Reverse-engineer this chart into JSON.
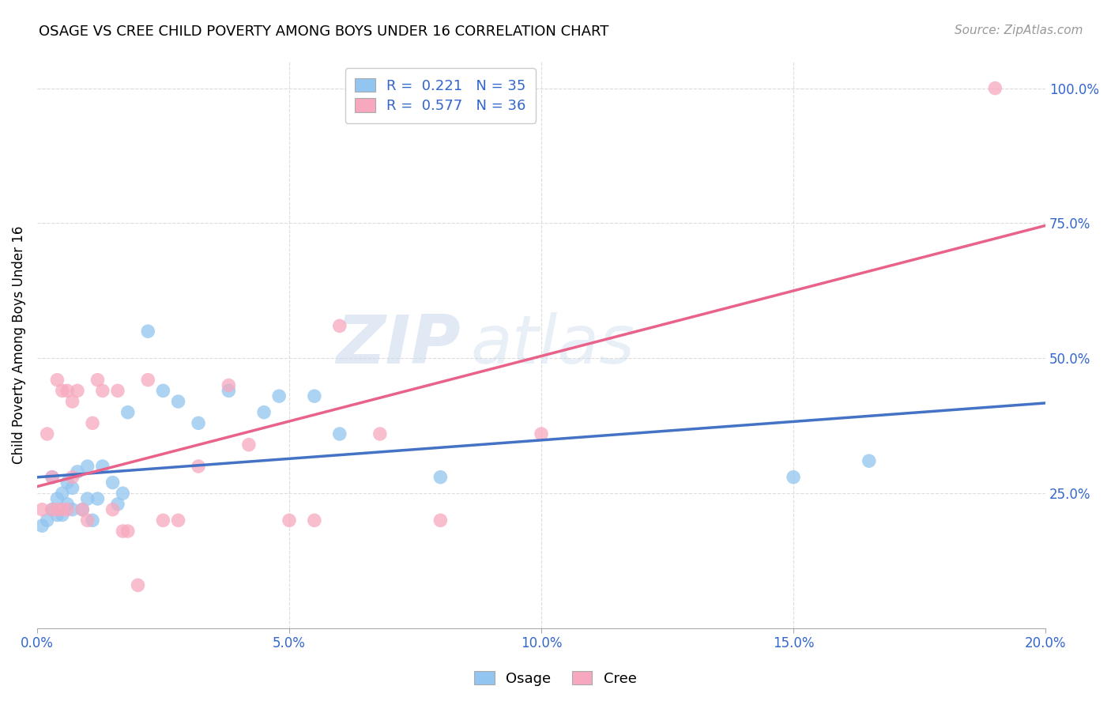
{
  "title": "OSAGE VS CREE CHILD POVERTY AMONG BOYS UNDER 16 CORRELATION CHART",
  "source": "Source: ZipAtlas.com",
  "ylabel": "Child Poverty Among Boys Under 16",
  "xlim": [
    0.0,
    0.2
  ],
  "ylim": [
    0.0,
    1.05
  ],
  "xtick_labels": [
    "0.0%",
    "5.0%",
    "10.0%",
    "15.0%",
    "20.0%"
  ],
  "xtick_vals": [
    0.0,
    0.05,
    0.1,
    0.15,
    0.2
  ],
  "ytick_labels_right": [
    "25.0%",
    "50.0%",
    "75.0%",
    "100.0%"
  ],
  "ytick_vals_right": [
    0.25,
    0.5,
    0.75,
    1.0
  ],
  "osage_color": "#92C5F0",
  "cree_color": "#F7A8BE",
  "osage_line_color": "#4472C4",
  "cree_line_color": "#E8628A",
  "legend_R_osage": "0.221",
  "legend_N_osage": "35",
  "legend_R_cree": "0.577",
  "legend_N_cree": "36",
  "watermark_zip": "ZIP",
  "watermark_atlas": "atlas",
  "background_color": "#FFFFFF",
  "grid_color": "#DDDDDD",
  "osage_x": [
    0.001,
    0.002,
    0.003,
    0.003,
    0.004,
    0.004,
    0.005,
    0.005,
    0.006,
    0.006,
    0.007,
    0.007,
    0.008,
    0.009,
    0.01,
    0.01,
    0.011,
    0.012,
    0.013,
    0.015,
    0.016,
    0.017,
    0.018,
    0.022,
    0.025,
    0.028,
    0.032,
    0.038,
    0.045,
    0.048,
    0.055,
    0.06,
    0.08,
    0.15,
    0.165
  ],
  "osage_y": [
    0.19,
    0.2,
    0.22,
    0.28,
    0.21,
    0.24,
    0.21,
    0.25,
    0.23,
    0.27,
    0.22,
    0.26,
    0.29,
    0.22,
    0.24,
    0.3,
    0.2,
    0.24,
    0.3,
    0.27,
    0.23,
    0.25,
    0.4,
    0.55,
    0.44,
    0.42,
    0.38,
    0.44,
    0.4,
    0.43,
    0.43,
    0.36,
    0.28,
    0.28,
    0.31
  ],
  "cree_x": [
    0.001,
    0.002,
    0.003,
    0.003,
    0.004,
    0.004,
    0.005,
    0.005,
    0.006,
    0.006,
    0.007,
    0.007,
    0.008,
    0.009,
    0.01,
    0.011,
    0.012,
    0.013,
    0.015,
    0.016,
    0.017,
    0.018,
    0.02,
    0.022,
    0.025,
    0.028,
    0.032,
    0.038,
    0.042,
    0.05,
    0.055,
    0.06,
    0.068,
    0.08,
    0.1,
    0.19
  ],
  "cree_y": [
    0.22,
    0.36,
    0.22,
    0.28,
    0.22,
    0.46,
    0.44,
    0.22,
    0.44,
    0.22,
    0.42,
    0.28,
    0.44,
    0.22,
    0.2,
    0.38,
    0.46,
    0.44,
    0.22,
    0.44,
    0.18,
    0.18,
    0.08,
    0.46,
    0.2,
    0.2,
    0.3,
    0.45,
    0.34,
    0.2,
    0.2,
    0.56,
    0.36,
    0.2,
    0.36,
    1.0
  ]
}
